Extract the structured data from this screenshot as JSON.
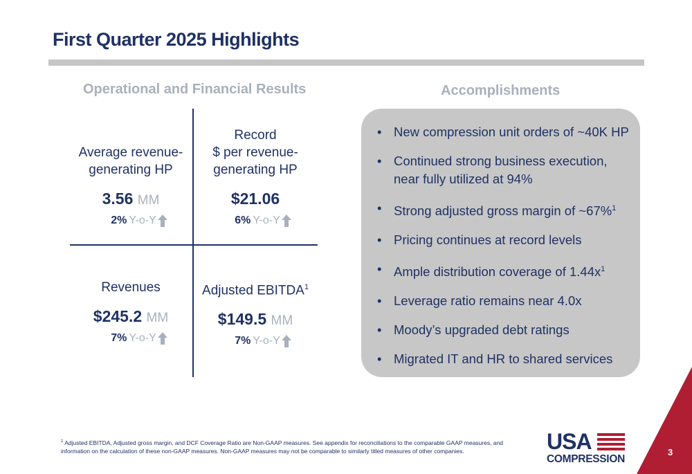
{
  "title": "First Quarter 2025 Highlights",
  "left_heading": "Operational and Financial Results",
  "right_heading": "Accomplishments",
  "metrics": [
    {
      "label_lines": [
        "Average revenue-",
        "generating HP"
      ],
      "value": "3.56",
      "unit": "MM",
      "yoy_pct": "2%",
      "yoy_label": "Y-o-Y",
      "sup": ""
    },
    {
      "label_lines": [
        "Record",
        "$ per revenue-",
        "generating HP"
      ],
      "value": "$21.06",
      "unit": "",
      "yoy_pct": "6%",
      "yoy_label": "Y-o-Y",
      "sup": ""
    },
    {
      "label_lines": [
        "Revenues"
      ],
      "value": "$245.2",
      "unit": "MM",
      "yoy_pct": "7%",
      "yoy_label": "Y-o-Y",
      "sup": ""
    },
    {
      "label_lines": [
        "Adjusted EBITDA"
      ],
      "value": "$149.5",
      "unit": "MM",
      "yoy_pct": "7%",
      "yoy_label": "Y-o-Y",
      "sup": "1"
    }
  ],
  "accomplishments": [
    {
      "text": "New compression unit orders of ~40K HP",
      "sup": ""
    },
    {
      "text": "Continued strong business execution, near fully utilized at 94%",
      "sup": ""
    },
    {
      "text": "Strong adjusted gross margin of ~67%",
      "sup": "1"
    },
    {
      "text": "Pricing continues at record levels",
      "sup": ""
    },
    {
      "text": "Ample distribution coverage of 1.44x",
      "sup": "1"
    },
    {
      "text": "Leverage ratio remains near 4.0x",
      "sup": ""
    },
    {
      "text": "Moody’s upgraded debt ratings",
      "sup": ""
    },
    {
      "text": "Migrated IT and HR to shared services",
      "sup": ""
    }
  ],
  "footnote": {
    "sup": "1",
    "text": "Adjusted EBITDA, Adjusted gross margin, and DCF Coverage Ratio are Non-GAAP measures. See appendix for reconciliations to the comparable GAAP measures, and information on the calculation of these non-GAAP measures. Non-GAAP measures may not be comparable to similarly titled measures of other companies."
  },
  "logo": {
    "line1": "USA",
    "line2": "COMPRESSION"
  },
  "page_number": "3",
  "colors": {
    "navy": "#1f3164",
    "gray": "#a9b0bd",
    "box": "#c7c7c7",
    "red": "#b01e33"
  }
}
